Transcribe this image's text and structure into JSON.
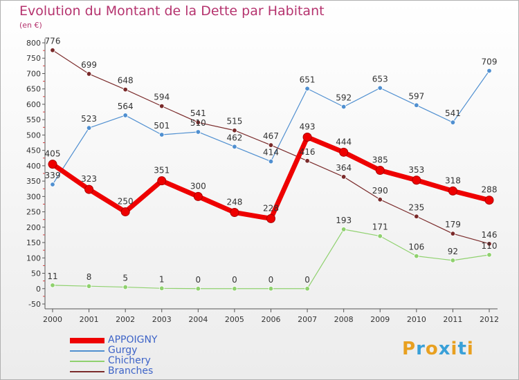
{
  "title": "Evolution du Montant de la Dette par Habitant",
  "subtitle": "(en €)",
  "logo": {
    "text": "Proxiti",
    "colors": [
      "#e8a020",
      "#39a0d8",
      "#e8a020",
      "#39a0d8",
      "#e8a020",
      "#39a0d8",
      "#e8a020"
    ]
  },
  "chart_data": {
    "type": "line",
    "x": [
      "2000",
      "2001",
      "2002",
      "2003",
      "2004",
      "2005",
      "2006",
      "2007",
      "2008",
      "2009",
      "2010",
      "2011",
      "2012"
    ],
    "ylim": [
      -50,
      800
    ],
    "yticks": [
      -50,
      0,
      50,
      100,
      150,
      200,
      250,
      300,
      350,
      400,
      450,
      500,
      550,
      600,
      650,
      700,
      750,
      800
    ],
    "grid": false,
    "legend_position": "bottom-left",
    "series": [
      {
        "name": "APPOIGNY",
        "color": "#ee0000",
        "values": [
          405,
          323,
          250,
          351,
          300,
          248,
          228,
          493,
          444,
          385,
          353,
          318,
          288
        ],
        "labels": [
          "405",
          "323",
          "250",
          "351",
          "300",
          "248",
          "228",
          "493",
          "444",
          "385",
          "353",
          "318",
          "288"
        ]
      },
      {
        "name": "Gurgy",
        "color": "#4f8fd0",
        "values": [
          339,
          523,
          564,
          501,
          510,
          462,
          414,
          651,
          592,
          653,
          597,
          541,
          709
        ],
        "labels": [
          "339",
          "523",
          "564",
          "501",
          "510",
          "462",
          "414",
          "651",
          "592",
          "653",
          "597",
          "541",
          "709"
        ]
      },
      {
        "name": "Chichery",
        "color": "#8fd16e",
        "values": [
          11,
          8,
          5,
          1,
          0,
          0,
          0,
          0,
          193,
          171,
          106,
          92,
          110
        ],
        "labels": [
          "11",
          "8",
          "5",
          "1",
          "0",
          "0",
          "0",
          "0",
          "193",
          "171",
          "106",
          "92",
          "110"
        ]
      },
      {
        "name": "Branches",
        "color": "#7a2a2a",
        "values": [
          776,
          699,
          648,
          594,
          541,
          515,
          467,
          416,
          364,
          290,
          235,
          179,
          146
        ],
        "labels": [
          "776",
          "699",
          "648",
          "594",
          "541",
          "515",
          "467",
          "416",
          "364",
          "290",
          "235",
          "179",
          "146"
        ]
      }
    ]
  }
}
